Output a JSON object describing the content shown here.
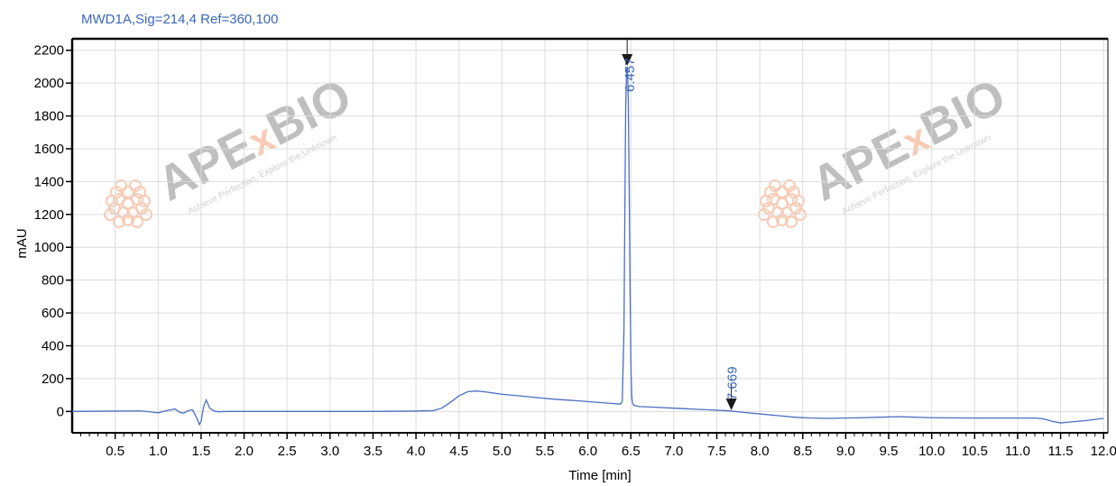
{
  "chart_data": {
    "type": "line",
    "title": "MWD1A,Sig=214,4  Ref=360,100",
    "xlabel": "Time [min]",
    "ylabel": "mAU",
    "xlim": [
      0.0,
      12.05
    ],
    "ylim": [
      -130,
      2270
    ],
    "x_ticks": [
      "0.5",
      "1.0",
      "1.5",
      "2.0",
      "2.5",
      "3.0",
      "3.5",
      "4.0",
      "4.5",
      "5.0",
      "5.5",
      "6.0",
      "6.5",
      "7.0",
      "7.5",
      "8.0",
      "8.5",
      "9.0",
      "9.5",
      "10.0",
      "10.5",
      "11.0",
      "11.5",
      "12.0"
    ],
    "y_ticks": [
      "0",
      "200",
      "400",
      "600",
      "800",
      "1000",
      "1200",
      "1400",
      "1600",
      "1800",
      "2000",
      "2200"
    ],
    "grid": true,
    "line_color": "#4a6fc0",
    "series": [
      {
        "x": [
          0.0,
          0.5,
          0.8,
          0.95,
          1.0,
          1.1,
          1.2,
          1.25,
          1.3,
          1.35,
          1.4,
          1.45,
          1.48,
          1.5,
          1.53,
          1.56,
          1.6,
          1.65,
          1.7,
          1.8,
          2.0,
          2.5,
          3.0,
          3.5,
          4.0,
          4.2,
          4.3,
          4.4,
          4.5,
          4.6,
          4.7,
          4.8,
          4.9,
          5.0,
          5.2,
          5.4,
          5.6,
          5.8,
          6.0,
          6.2,
          6.38,
          6.4,
          6.42,
          6.43,
          6.44,
          6.45,
          6.46,
          6.47,
          6.48,
          6.49,
          6.5,
          6.51,
          6.52,
          6.53,
          6.55,
          6.58,
          6.6,
          6.8,
          7.0,
          7.2,
          7.4,
          7.6,
          7.669,
          7.8,
          8.0,
          8.2,
          8.4,
          8.6,
          8.8,
          9.0,
          9.2,
          9.4,
          9.6,
          9.8,
          10.0,
          10.5,
          11.0,
          11.2,
          11.3,
          11.4,
          11.5,
          11.6,
          11.8,
          12.0
        ],
        "y": [
          0,
          2,
          3,
          -5,
          -8,
          5,
          15,
          -5,
          -10,
          5,
          10,
          -40,
          -80,
          -60,
          30,
          70,
          20,
          3,
          -2,
          0,
          0,
          0,
          0,
          0,
          2,
          5,
          20,
          55,
          95,
          120,
          125,
          120,
          112,
          105,
          95,
          85,
          75,
          68,
          60,
          52,
          45,
          60,
          500,
          1200,
          1850,
          2080,
          2100,
          1900,
          1400,
          800,
          300,
          90,
          50,
          40,
          35,
          32,
          30,
          25,
          20,
          15,
          10,
          5,
          2,
          -5,
          -15,
          -25,
          -35,
          -40,
          -42,
          -40,
          -38,
          -35,
          -32,
          -35,
          -38,
          -40,
          -40,
          -40,
          -45,
          -60,
          -70,
          -65,
          -55,
          -42
        ]
      }
    ],
    "annotations": [
      {
        "label": "6.457",
        "x": 6.457,
        "y": 2100
      },
      {
        "label": "7.669",
        "x": 7.669,
        "y": 2
      }
    ],
    "watermark": {
      "text": "APExBIO",
      "tagline": "Achieve Perfection, Explore the Unknown"
    }
  }
}
